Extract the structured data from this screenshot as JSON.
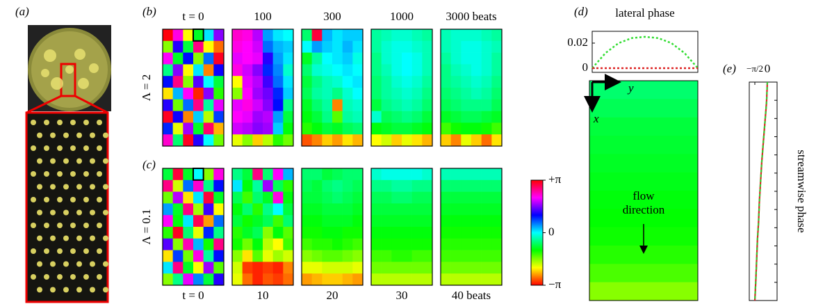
{
  "photo": {
    "label": "(a)"
  },
  "chart_data": [
    {
      "type": "heatmap-series",
      "label": "(b)",
      "row_label": "Λ = 2",
      "frame_labels": [
        "t = 0",
        "100",
        "300",
        "1000",
        "3000 beats"
      ],
      "frames": [
        [
          [
            3.1,
            2.2,
            -2.1,
            -0.9,
            0.1,
            1.6
          ],
          [
            -1.6,
            1.2,
            -0.8,
            2.6,
            -2.1,
            -2.7
          ],
          [
            2.1,
            -0.9,
            1.0,
            -1.6,
            0.6,
            3.0
          ],
          [
            -0.5,
            1.6,
            -2.1,
            0.1,
            -2.6,
            1.1
          ],
          [
            1.0,
            2.6,
            -1.6,
            1.4,
            0.0,
            -0.8
          ],
          [
            -2.2,
            0.3,
            2.1,
            -3.0,
            1.6,
            -1.2
          ],
          [
            1.2,
            -1.5,
            0.6,
            2.6,
            -0.4,
            2.0
          ],
          [
            3.0,
            1.1,
            -2.6,
            0.2,
            -1.8,
            0.8
          ],
          [
            0.9,
            -2.0,
            1.7,
            -0.9,
            2.7,
            -2.4
          ],
          [
            2.3,
            -0.6,
            3.0,
            1.2,
            0.0,
            -1.5
          ]
        ],
        [
          [
            2.3,
            2.2,
            1.8,
            0.4,
            0.1,
            0.0
          ],
          [
            2.2,
            2.1,
            1.9,
            0.6,
            0.3,
            0.2
          ],
          [
            2.0,
            2.1,
            2.0,
            1.2,
            0.4,
            0.1
          ],
          [
            2.2,
            1.9,
            1.6,
            0.9,
            0.5,
            -0.2
          ],
          [
            -2.1,
            2.0,
            1.8,
            1.3,
            0.6,
            0.1
          ],
          [
            -1.6,
            2.1,
            1.7,
            1.5,
            0.9,
            0.2
          ],
          [
            2.0,
            2.2,
            1.9,
            1.6,
            1.0,
            -0.5
          ],
          [
            2.1,
            2.0,
            1.7,
            1.8,
            0.4,
            -0.8
          ],
          [
            1.9,
            1.8,
            1.6,
            1.7,
            0.2,
            -1.0
          ],
          [
            -2.0,
            -1.6,
            -2.3,
            -1.8,
            -1.2,
            -1.5
          ]
        ],
        [
          [
            -0.6,
            2.9,
            0.3,
            0.1,
            0.2,
            0.2
          ],
          [
            0.0,
            0.4,
            0.2,
            0.1,
            0.3,
            0.1
          ],
          [
            -0.9,
            -0.4,
            0.0,
            0.1,
            0.2,
            -0.1
          ],
          [
            -0.6,
            -0.2,
            -0.1,
            0.0,
            0.1,
            0.0
          ],
          [
            -0.8,
            -0.5,
            -0.3,
            -0.2,
            0.0,
            0.1
          ],
          [
            -0.7,
            -0.4,
            -0.3,
            -0.5,
            -0.2,
            0.0
          ],
          [
            -0.9,
            -0.6,
            -0.4,
            -2.6,
            -0.3,
            -0.2
          ],
          [
            -1.0,
            -0.8,
            -0.5,
            -1.4,
            -0.4,
            -0.3
          ],
          [
            -1.2,
            -1.0,
            -0.8,
            -0.9,
            -0.7,
            -0.6
          ],
          [
            -2.8,
            -2.6,
            -2.3,
            -2.5,
            -2.2,
            -2.4
          ]
        ],
        [
          [
            -0.4,
            -0.3,
            -0.2,
            -0.2,
            -0.3,
            -0.4
          ],
          [
            -0.4,
            -0.2,
            -0.1,
            -0.1,
            -0.2,
            -0.3
          ],
          [
            -0.5,
            -0.2,
            -0.1,
            0.0,
            -0.1,
            -0.3
          ],
          [
            -0.5,
            -0.3,
            -0.1,
            0.0,
            -0.1,
            -0.3
          ],
          [
            -0.6,
            -0.4,
            -0.2,
            -0.1,
            -0.2,
            -0.4
          ],
          [
            -0.6,
            -0.4,
            -0.3,
            -0.2,
            -0.3,
            -0.5
          ],
          [
            -0.8,
            -0.5,
            -0.4,
            -0.3,
            -0.4,
            -0.6
          ],
          [
            -0.2,
            -0.7,
            -0.6,
            -0.5,
            -0.6,
            -0.8
          ],
          [
            -1.0,
            -0.9,
            -0.8,
            -0.8,
            -0.9,
            -1.0
          ],
          [
            -2.1,
            -1.9,
            -2.3,
            -2.0,
            -2.2,
            -2.4
          ]
        ],
        [
          [
            -0.3,
            -0.2,
            -0.2,
            -0.2,
            -0.3,
            -0.4
          ],
          [
            -0.3,
            -0.2,
            -0.1,
            -0.1,
            -0.2,
            -0.3
          ],
          [
            -0.4,
            -0.2,
            -0.1,
            -0.1,
            -0.2,
            -0.4
          ],
          [
            -0.5,
            -0.3,
            -0.2,
            -0.1,
            -0.2,
            -0.4
          ],
          [
            -0.5,
            -0.4,
            -0.3,
            -0.2,
            -0.3,
            -0.5
          ],
          [
            -0.6,
            -0.5,
            -0.4,
            -0.3,
            -0.4,
            -0.6
          ],
          [
            -0.7,
            -0.6,
            -0.5,
            -0.5,
            -0.5,
            -0.7
          ],
          [
            -0.9,
            -0.8,
            -0.7,
            -0.7,
            -0.8,
            -0.9
          ],
          [
            -1.3,
            -1.1,
            -1.0,
            -1.0,
            -1.1,
            -1.3
          ],
          [
            -2.3,
            -2.6,
            -2.0,
            -2.3,
            -2.7,
            -2.2
          ]
        ]
      ]
    },
    {
      "type": "heatmap-series",
      "label": "(c)",
      "row_label": "Λ = 0.1",
      "frame_labels": [
        "t = 0",
        "10",
        "20",
        "30",
        "40 beats"
      ],
      "frames": [
        [
          [
            -0.8,
            2.9,
            -0.9,
            0.0,
            -1.6,
            2.2
          ],
          [
            2.6,
            -1.9,
            0.6,
            2.3,
            -0.5,
            1.0
          ],
          [
            -1.5,
            1.8,
            -2.2,
            0.1,
            2.9,
            -0.9
          ],
          [
            0.4,
            -0.9,
            2.6,
            -1.7,
            1.3,
            -2.1
          ],
          [
            2.1,
            -1.0,
            0.1,
            2.8,
            -2.5,
            0.6
          ],
          [
            -1.2,
            3.0,
            -0.6,
            -2.0,
            0.9,
            -0.5
          ],
          [
            1.4,
            -1.6,
            2.4,
            0.3,
            -1.1,
            2.6
          ],
          [
            -2.2,
            0.8,
            -1.5,
            2.2,
            -0.4,
            1.0
          ],
          [
            0.1,
            2.6,
            -0.9,
            -2.1,
            1.7,
            -1.4
          ],
          [
            -1.6,
            -0.5,
            2.0,
            0.5,
            -0.8,
            1.2
          ]
        ],
        [
          [
            -0.5,
            -0.8,
            2.6,
            -0.6,
            2.1,
            0.3
          ],
          [
            0.1,
            -1.0,
            -0.4,
            1.7,
            -0.7,
            -1.2
          ],
          [
            -0.7,
            -1.3,
            -0.6,
            -0.9,
            2.2,
            -1.0
          ],
          [
            -1.0,
            -0.6,
            -1.2,
            -0.5,
            0.0,
            -0.8
          ],
          [
            -0.8,
            -1.1,
            -0.9,
            -0.7,
            -1.3,
            -0.6
          ],
          [
            -1.2,
            -0.9,
            -0.7,
            -1.6,
            -1.0,
            -1.4
          ],
          [
            -1.1,
            -1.5,
            -1.0,
            -1.8,
            -2.1,
            -1.3
          ],
          [
            -1.6,
            -2.2,
            -1.4,
            -2.0,
            -1.7,
            -1.9
          ],
          [
            -1.9,
            -2.9,
            -3.0,
            -2.9,
            -3.0,
            -2.6
          ],
          [
            -2.0,
            -2.7,
            -3.0,
            -2.8,
            -2.9,
            -2.7
          ]
        ],
        [
          [
            -0.6,
            -0.6,
            -0.8,
            -0.7,
            -0.6,
            -0.6
          ],
          [
            -0.7,
            -0.8,
            -0.6,
            -0.5,
            -0.6,
            -0.7
          ],
          [
            -0.8,
            -0.8,
            -0.7,
            -0.6,
            -0.7,
            -0.8
          ],
          [
            -0.9,
            -0.9,
            -0.8,
            -0.8,
            -0.8,
            -0.9
          ],
          [
            -1.0,
            -1.0,
            -0.9,
            -0.9,
            -0.9,
            -1.0
          ],
          [
            -1.1,
            -1.1,
            -1.0,
            -1.0,
            -1.1,
            -1.1
          ],
          [
            -1.3,
            -1.2,
            -1.2,
            -1.1,
            -1.2,
            -1.3
          ],
          [
            -1.6,
            -1.5,
            -1.4,
            -1.4,
            -1.5,
            -1.6
          ],
          [
            -2.0,
            -2.0,
            -1.9,
            -1.9,
            -1.9,
            -2.0
          ],
          [
            -2.5,
            -2.4,
            -2.3,
            -2.3,
            -2.4,
            -2.5
          ]
        ],
        [
          [
            -0.2,
            -0.1,
            -0.1,
            -0.1,
            -0.1,
            -0.2
          ],
          [
            -0.5,
            -0.5,
            -0.4,
            -0.4,
            -0.5,
            -0.5
          ],
          [
            -0.7,
            -0.7,
            -0.6,
            -0.6,
            -0.7,
            -0.7
          ],
          [
            -0.8,
            -0.8,
            -0.8,
            -0.8,
            -0.8,
            -0.8
          ],
          [
            -0.9,
            -0.9,
            -0.9,
            -0.9,
            -0.9,
            -0.9
          ],
          [
            -1.0,
            -1.0,
            -1.0,
            -1.0,
            -1.0,
            -1.0
          ],
          [
            -1.1,
            -1.1,
            -1.1,
            -1.1,
            -1.1,
            -1.1
          ],
          [
            -1.3,
            -1.3,
            -1.2,
            -1.2,
            -1.3,
            -1.3
          ],
          [
            -1.5,
            -1.5,
            -1.5,
            -1.5,
            -1.5,
            -1.5
          ],
          [
            -1.8,
            -1.8,
            -1.8,
            -1.8,
            -1.8,
            -1.8
          ]
        ],
        [
          [
            -0.3,
            -0.3,
            -0.3,
            -0.3,
            -0.3,
            -0.3
          ],
          [
            -0.6,
            -0.6,
            -0.6,
            -0.6,
            -0.6,
            -0.6
          ],
          [
            -0.8,
            -0.8,
            -0.8,
            -0.8,
            -0.8,
            -0.8
          ],
          [
            -0.9,
            -0.9,
            -0.9,
            -0.9,
            -0.9,
            -0.9
          ],
          [
            -1.0,
            -1.0,
            -1.0,
            -1.0,
            -1.0,
            -1.0
          ],
          [
            -1.1,
            -1.1,
            -1.1,
            -1.1,
            -1.1,
            -1.1
          ],
          [
            -1.2,
            -1.2,
            -1.2,
            -1.2,
            -1.2,
            -1.2
          ],
          [
            -1.3,
            -1.3,
            -1.3,
            -1.3,
            -1.3,
            -1.3
          ],
          [
            -1.5,
            -1.5,
            -1.5,
            -1.5,
            -1.5,
            -1.5
          ],
          [
            -1.8,
            -1.8,
            -1.8,
            -1.8,
            -1.8,
            -1.8
          ]
        ]
      ]
    },
    {
      "type": "colorbar",
      "ylim": [
        -3.1416,
        3.1416
      ],
      "yticks": [
        {
          "value": 3.1416,
          "label": "+π"
        },
        0,
        {
          "value": -3.1416,
          "label": "−π"
        }
      ]
    },
    {
      "type": "line",
      "label": "(d)",
      "title": "lateral phase",
      "ylim": [
        -0.0033,
        0.0294
      ],
      "yticks": [
        0,
        0.02
      ],
      "series": [
        {
          "color": "#33dd33",
          "dash": "3,3",
          "values": [
            0,
            0.012,
            0.02,
            0.024,
            0.025,
            0.024,
            0.02,
            0.012,
            0
          ]
        },
        {
          "color": "#dd2222",
          "dash": "3,3",
          "values": [
            0,
            0,
            0,
            0,
            0,
            0,
            0,
            0,
            0
          ]
        }
      ]
    },
    {
      "type": "heatmap-rows",
      "horizontal_axis_label": "y",
      "vertical_axis_label": "x",
      "annotation": [
        "flow",
        "direction"
      ],
      "values": [
        -0.6,
        -0.7,
        -0.8,
        -0.85,
        -0.9,
        -0.95,
        -1.0,
        -1.05,
        -1.1,
        -1.2,
        -1.35,
        -1.6
      ]
    },
    {
      "type": "line-vertical",
      "label": "(e)",
      "ylabel": "streamwise phase",
      "xlim": [
        -2.27,
        1.22
      ],
      "xticks": [
        {
          "value": -1.5708,
          "label": "−π/2"
        },
        0
      ],
      "series": [
        {
          "color": "#dd2222",
          "dash": "none",
          "values": [
            0,
            -0.1,
            -0.3,
            -0.5,
            -0.7,
            -0.85,
            -1.0,
            -1.1,
            -1.25,
            -1.35,
            -1.45,
            -1.57
          ]
        },
        {
          "color": "#33cc33",
          "dash": "4,3",
          "values": [
            0,
            -0.1,
            -0.3,
            -0.5,
            -0.7,
            -0.85,
            -1.0,
            -1.1,
            -1.25,
            -1.35,
            -1.45,
            -1.57
          ]
        }
      ]
    }
  ]
}
